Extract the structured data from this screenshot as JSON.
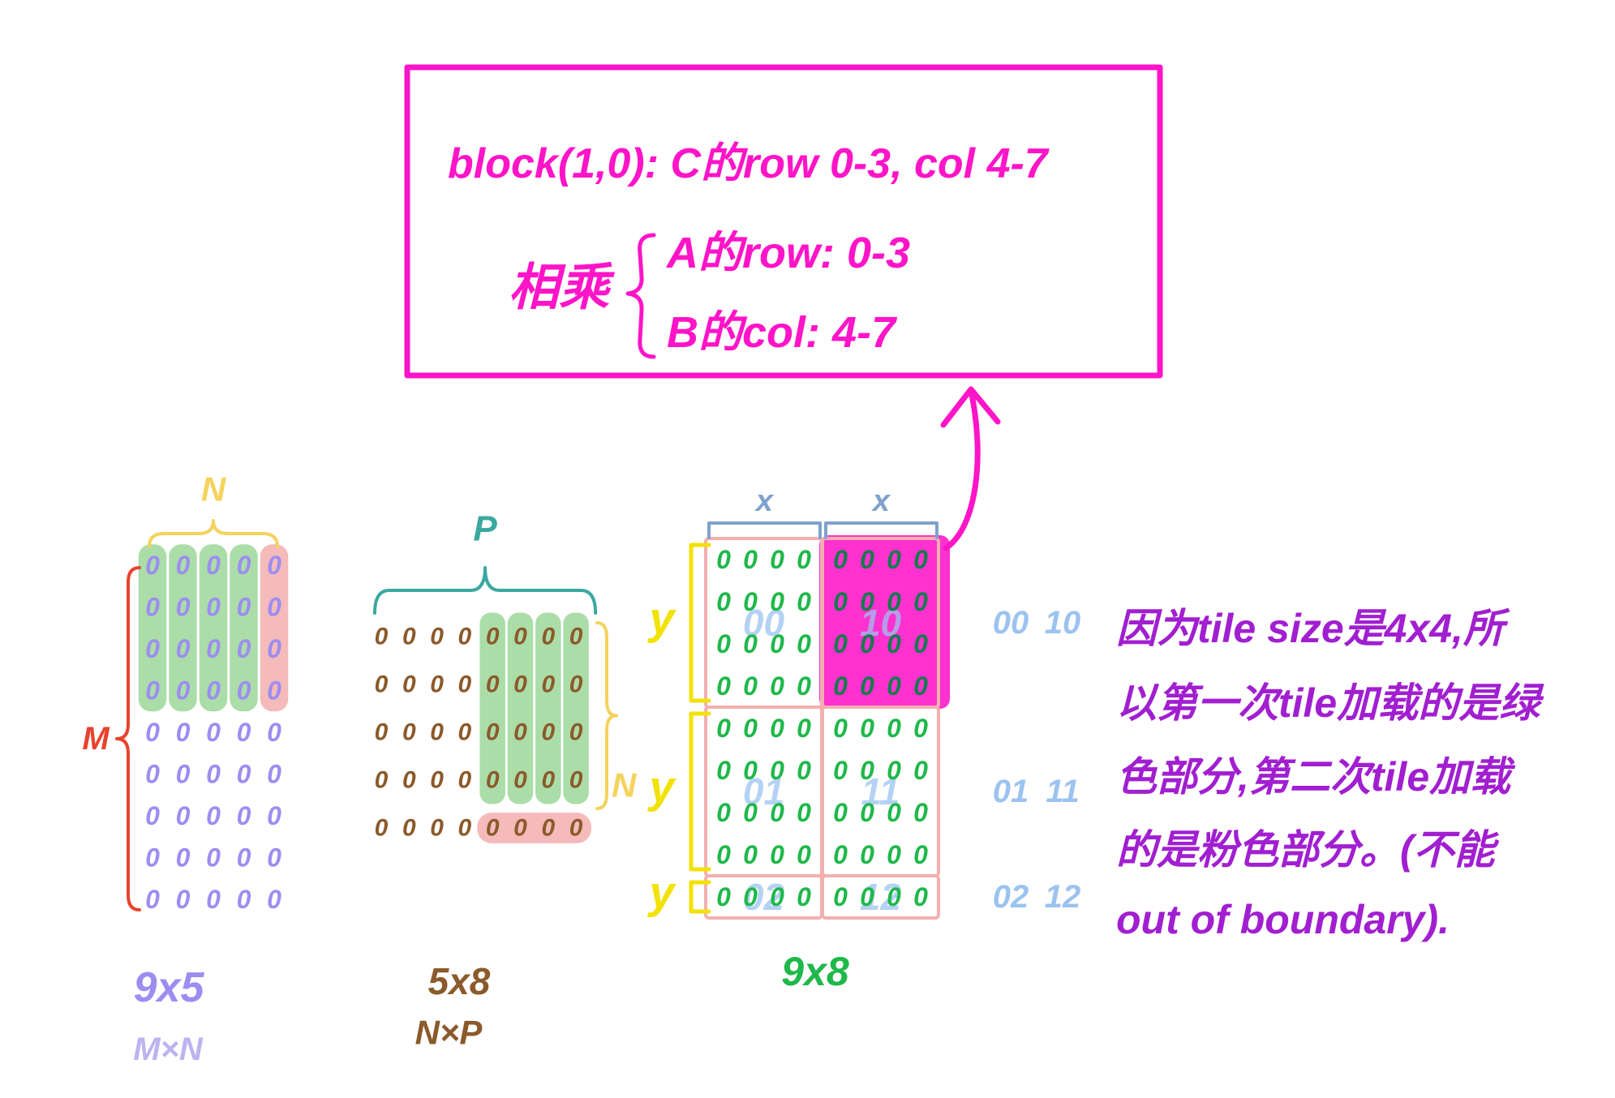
{
  "info_box": {
    "title_line": "block(1,0): C的row 0-3, col 4-7",
    "multiply_label": "相乘",
    "a_line": "A的row: 0-3",
    "b_line": "B的col: 4-7"
  },
  "matrix_a": {
    "rows": 9,
    "cols": 5,
    "cell": "0",
    "top_label": "N",
    "side_label": "M",
    "size_label": "9x5",
    "shape_label": "M×N",
    "green_cells": {
      "rows": [
        0,
        3
      ],
      "cols": [
        0,
        3
      ]
    },
    "pink_cells": {
      "rows": [
        0,
        3
      ],
      "cols": [
        4,
        4
      ]
    }
  },
  "matrix_b": {
    "rows": 5,
    "cols": 8,
    "cell": "0",
    "top_label": "P",
    "side_label": "N",
    "size_label": "5x8",
    "shape_label": "N×P",
    "green_cells": {
      "rows": [
        0,
        3
      ],
      "cols": [
        4,
        7
      ]
    },
    "pink_cells": {
      "rows": [
        4,
        4
      ],
      "cols": [
        4,
        7
      ]
    }
  },
  "matrix_c": {
    "rows": 9,
    "cols": 8,
    "cell": "0",
    "tile_size": 4,
    "size_label": "9x8",
    "x_labels": [
      "x",
      "x"
    ],
    "y_labels": [
      "y",
      "y",
      "y"
    ],
    "tile_labels": [
      [
        "00",
        "10"
      ],
      [
        "01",
        "11"
      ],
      [
        "02",
        "12"
      ]
    ],
    "highlighted_tile": {
      "tile_row": 0,
      "tile_col": 1
    }
  },
  "note": {
    "lines": [
      "因为tile size是4x4,所",
      "以第一次tile加载的是绿",
      "色部分,第二次tile加载",
      "的是粉色部分。(不能",
      "out of boundary)."
    ]
  },
  "colors": {
    "magenta": "#ff14c8",
    "a_dot": "#9d8df1",
    "a_shape_label": "#bdb3ee",
    "b_dot": "#8b5a2b",
    "c_dot": "#1fb84a",
    "c_dot_on_highlight": "#137a4e",
    "green_highlight": "#8fd18b",
    "pink_highlight": "#f2a3a3",
    "tile_grid": "#f3b0b0",
    "tile_label": "#9cc3ef",
    "note": "#a11fd0",
    "brace_yellow": "#f4d35e",
    "label_yellow": "#f2e205",
    "red": "#e8432e",
    "teal": "#3aa8a0",
    "x_label": "#7fa2cc"
  }
}
